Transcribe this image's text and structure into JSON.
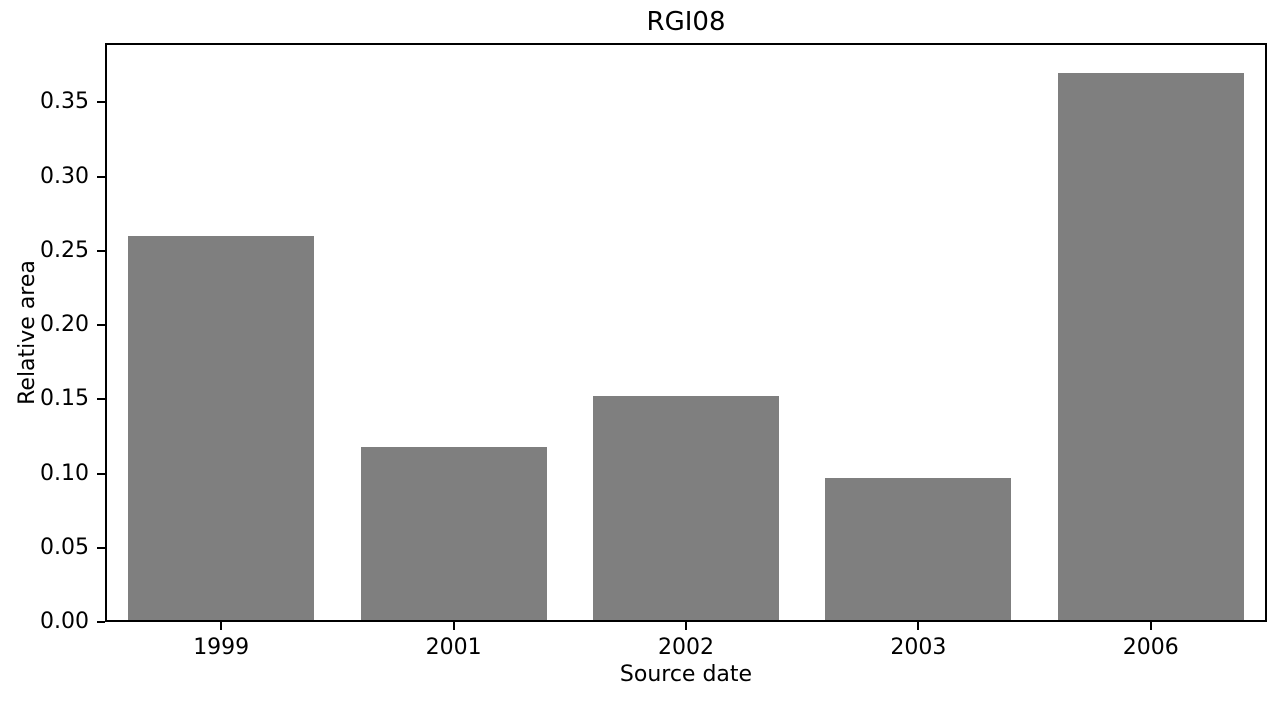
{
  "figure": {
    "background": "#ffffff"
  },
  "chart_data": {
    "type": "bar",
    "title": "RGI08",
    "xlabel": "Source date",
    "ylabel": "Relative area",
    "categories": [
      "1999",
      "2001",
      "2002",
      "2003",
      "2006"
    ],
    "values": [
      0.26,
      0.118,
      0.152,
      0.097,
      0.37
    ],
    "yticks": [
      "0.00",
      "0.05",
      "0.10",
      "0.15",
      "0.20",
      "0.25",
      "0.30",
      "0.35"
    ],
    "ylim": [
      0,
      0.39
    ],
    "bar_color": "#7f7f7f",
    "axis_color": "#000000",
    "text_color": "#000000",
    "grid": false,
    "legend": "none",
    "bar_width_fraction": 0.8
  }
}
